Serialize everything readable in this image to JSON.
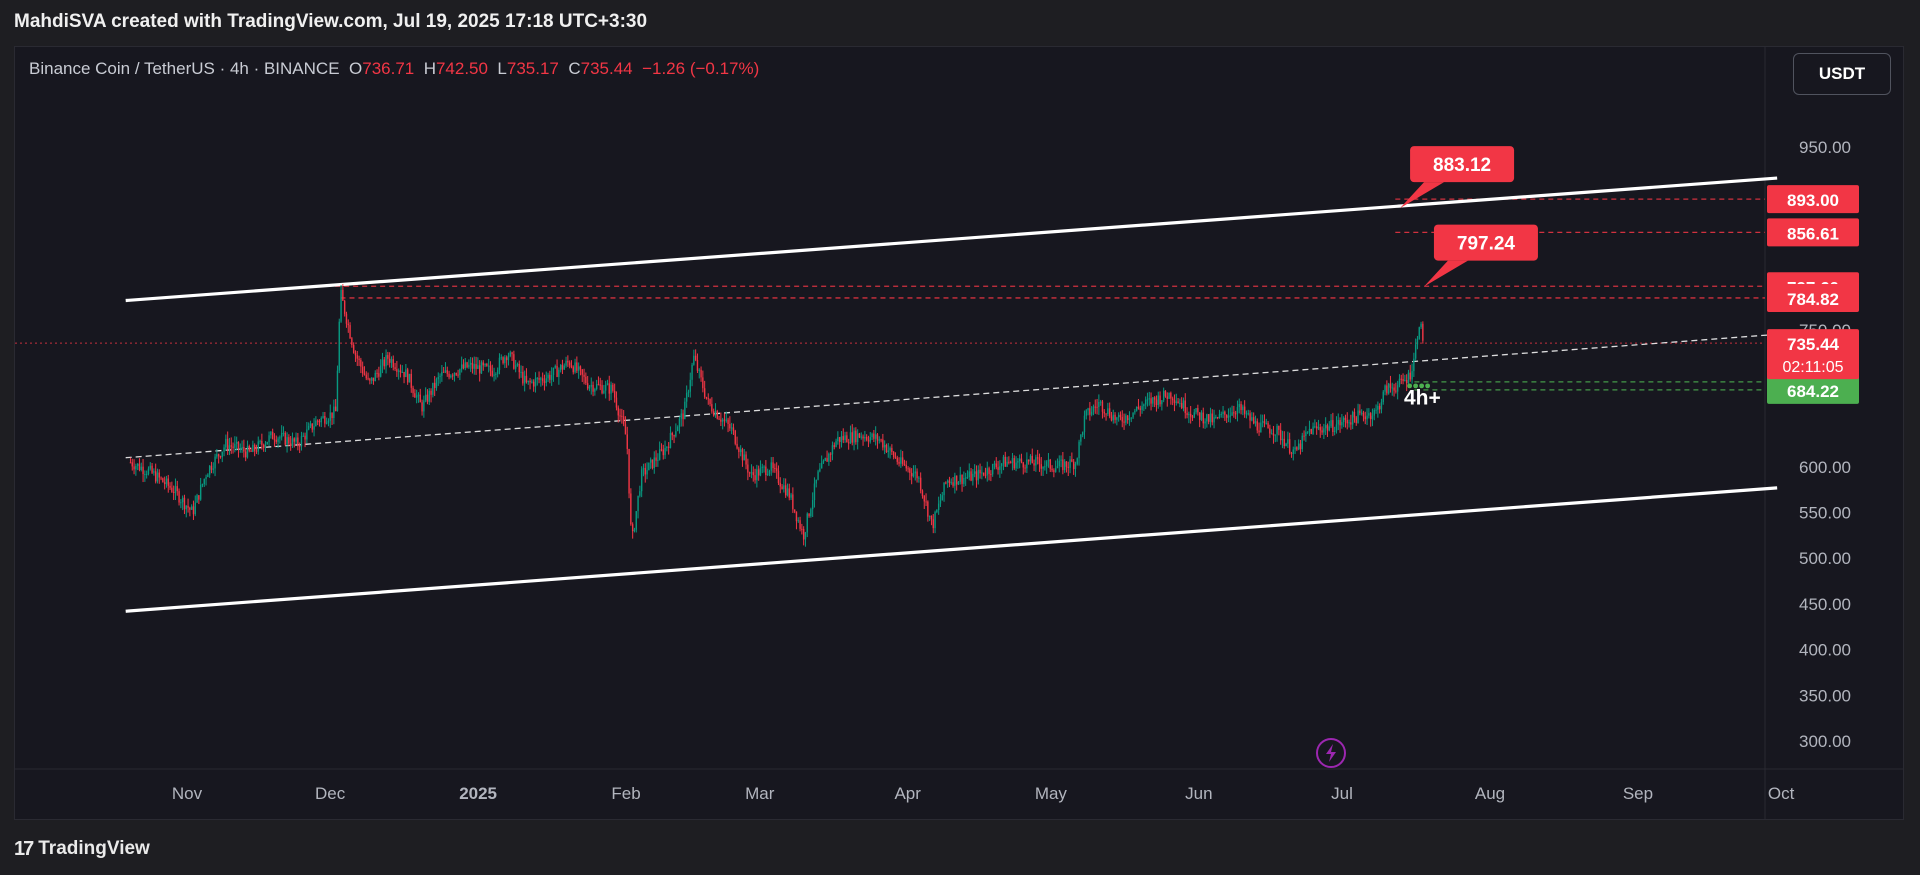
{
  "header": {
    "text": "MahdiSVA created with TradingView.com, Jul 19, 2025 17:18 UTC+3:30"
  },
  "legend": {
    "symbol": "Binance Coin / TetherUS · 4h · BINANCE",
    "o_label": "O",
    "o": "736.71",
    "h_label": "H",
    "h": "742.50",
    "l_label": "L",
    "l": "735.17",
    "c_label": "C",
    "c": "735.44",
    "change": "−1.26 (−0.17%)"
  },
  "currency_button": "USDT",
  "footer": {
    "logo_glyph": "17",
    "brand": "TradingView"
  },
  "colors": {
    "up": "#089981",
    "down": "#f23645",
    "label_red": "#f23645",
    "label_green": "#4caf50",
    "channel": "#ffffff",
    "accent": "#9c27b0"
  },
  "chart_data": {
    "type": "candlestick",
    "symbol": "BNBUSDT",
    "interval": "4h",
    "y_axis": {
      "min": 280,
      "max": 980,
      "ticks": [
        "950.00",
        "750.00",
        "600.00",
        "550.00",
        "500.00",
        "450.00",
        "400.00",
        "350.00",
        "300.00"
      ]
    },
    "x_axis": {
      "ticks": [
        "Nov",
        "Dec",
        "2025",
        "Feb",
        "Mar",
        "Apr",
        "May",
        "Jun",
        "Jul",
        "Aug",
        "Sep",
        "Oct"
      ]
    },
    "price_points": [
      [
        "2024-10-21",
        605
      ],
      [
        "2024-10-25",
        595
      ],
      [
        "2024-10-30",
        575
      ],
      [
        "2024-11-03",
        550
      ],
      [
        "2024-11-06",
        595
      ],
      [
        "2024-11-10",
        625
      ],
      [
        "2024-11-15",
        615
      ],
      [
        "2024-11-20",
        635
      ],
      [
        "2024-11-25",
        625
      ],
      [
        "2024-11-29",
        650
      ],
      [
        "2024-12-03",
        660
      ],
      [
        "2024-12-04",
        790
      ],
      [
        "2024-12-07",
        725
      ],
      [
        "2024-12-10",
        690
      ],
      [
        "2024-12-14",
        720
      ],
      [
        "2024-12-18",
        700
      ],
      [
        "2024-12-21",
        665
      ],
      [
        "2024-12-25",
        700
      ],
      [
        "2024-12-31",
        710
      ],
      [
        "2025-01-05",
        705
      ],
      [
        "2025-01-08",
        725
      ],
      [
        "2025-01-12",
        690
      ],
      [
        "2025-01-17",
        700
      ],
      [
        "2025-01-21",
        715
      ],
      [
        "2025-01-25",
        690
      ],
      [
        "2025-01-30",
        685
      ],
      [
        "2025-02-02",
        630
      ],
      [
        "2025-02-03",
        515
      ],
      [
        "2025-02-05",
        590
      ],
      [
        "2025-02-10",
        620
      ],
      [
        "2025-02-14",
        660
      ],
      [
        "2025-02-16",
        720
      ],
      [
        "2025-02-19",
        670
      ],
      [
        "2025-02-24",
        640
      ],
      [
        "2025-02-28",
        590
      ],
      [
        "2025-03-04",
        600
      ],
      [
        "2025-03-08",
        570
      ],
      [
        "2025-03-11",
        525
      ],
      [
        "2025-03-14",
        590
      ],
      [
        "2025-03-18",
        630
      ],
      [
        "2025-03-23",
        635
      ],
      [
        "2025-03-27",
        630
      ],
      [
        "2025-03-31",
        605
      ],
      [
        "2025-04-04",
        590
      ],
      [
        "2025-04-07",
        535
      ],
      [
        "2025-04-10",
        585
      ],
      [
        "2025-04-16",
        590
      ],
      [
        "2025-04-22",
        605
      ],
      [
        "2025-04-28",
        605
      ],
      [
        "2025-05-03",
        600
      ],
      [
        "2025-05-07",
        605
      ],
      [
        "2025-05-09",
        655
      ],
      [
        "2025-05-12",
        670
      ],
      [
        "2025-05-16",
        650
      ],
      [
        "2025-05-22",
        670
      ],
      [
        "2025-05-27",
        680
      ],
      [
        "2025-05-31",
        660
      ],
      [
        "2025-06-05",
        650
      ],
      [
        "2025-06-10",
        665
      ],
      [
        "2025-06-14",
        645
      ],
      [
        "2025-06-18",
        640
      ],
      [
        "2025-06-22",
        615
      ],
      [
        "2025-06-25",
        640
      ],
      [
        "2025-06-30",
        645
      ],
      [
        "2025-07-05",
        655
      ],
      [
        "2025-07-09",
        660
      ],
      [
        "2025-07-11",
        685
      ],
      [
        "2025-07-14",
        690
      ],
      [
        "2025-07-16",
        700
      ],
      [
        "2025-07-17",
        720
      ],
      [
        "2025-07-18",
        760
      ],
      [
        "2025-07-19",
        735.44
      ]
    ],
    "channel_lines": [
      {
        "name": "channel-upper",
        "from": [
          "2024-10-20",
          782
        ],
        "to": [
          "2025-10-01",
          916
        ]
      },
      {
        "name": "channel-lower",
        "from": [
          "2024-10-20",
          442
        ],
        "to": [
          "2025-10-01",
          577
        ]
      },
      {
        "name": "channel-mid",
        "from": [
          "2024-10-20",
          610
        ],
        "to": [
          "2025-10-01",
          745
        ]
      }
    ],
    "horizontal_levels": [
      {
        "value": 893.0,
        "label": "893.00",
        "color": "red",
        "from": "2025-07-13"
      },
      {
        "value": 856.61,
        "label": "856.61",
        "color": "red",
        "from": "2025-07-13"
      },
      {
        "value": 797.6,
        "label": "797.60",
        "color": "red",
        "from": "2024-12-01"
      },
      {
        "value": 784.82,
        "label": "784.82",
        "color": "red",
        "from": "2024-12-04"
      },
      {
        "value": 693.01,
        "label": "693.01",
        "color": "green",
        "from": "2025-07-17"
      },
      {
        "value": 684.22,
        "label": "684.22",
        "color": "green",
        "from": "2025-07-17"
      }
    ],
    "last_price": {
      "value": 735.44,
      "label": "735.44",
      "countdown": "02:11:05"
    },
    "target_callouts": [
      {
        "label": "883.12",
        "point": [
          "2025-07-14",
          883.12
        ]
      },
      {
        "label": "797.24",
        "point": [
          "2025-07-19",
          797.24
        ]
      }
    ],
    "annotation": {
      "text": "4h+",
      "point": [
        "2025-07-19",
        675
      ]
    }
  }
}
